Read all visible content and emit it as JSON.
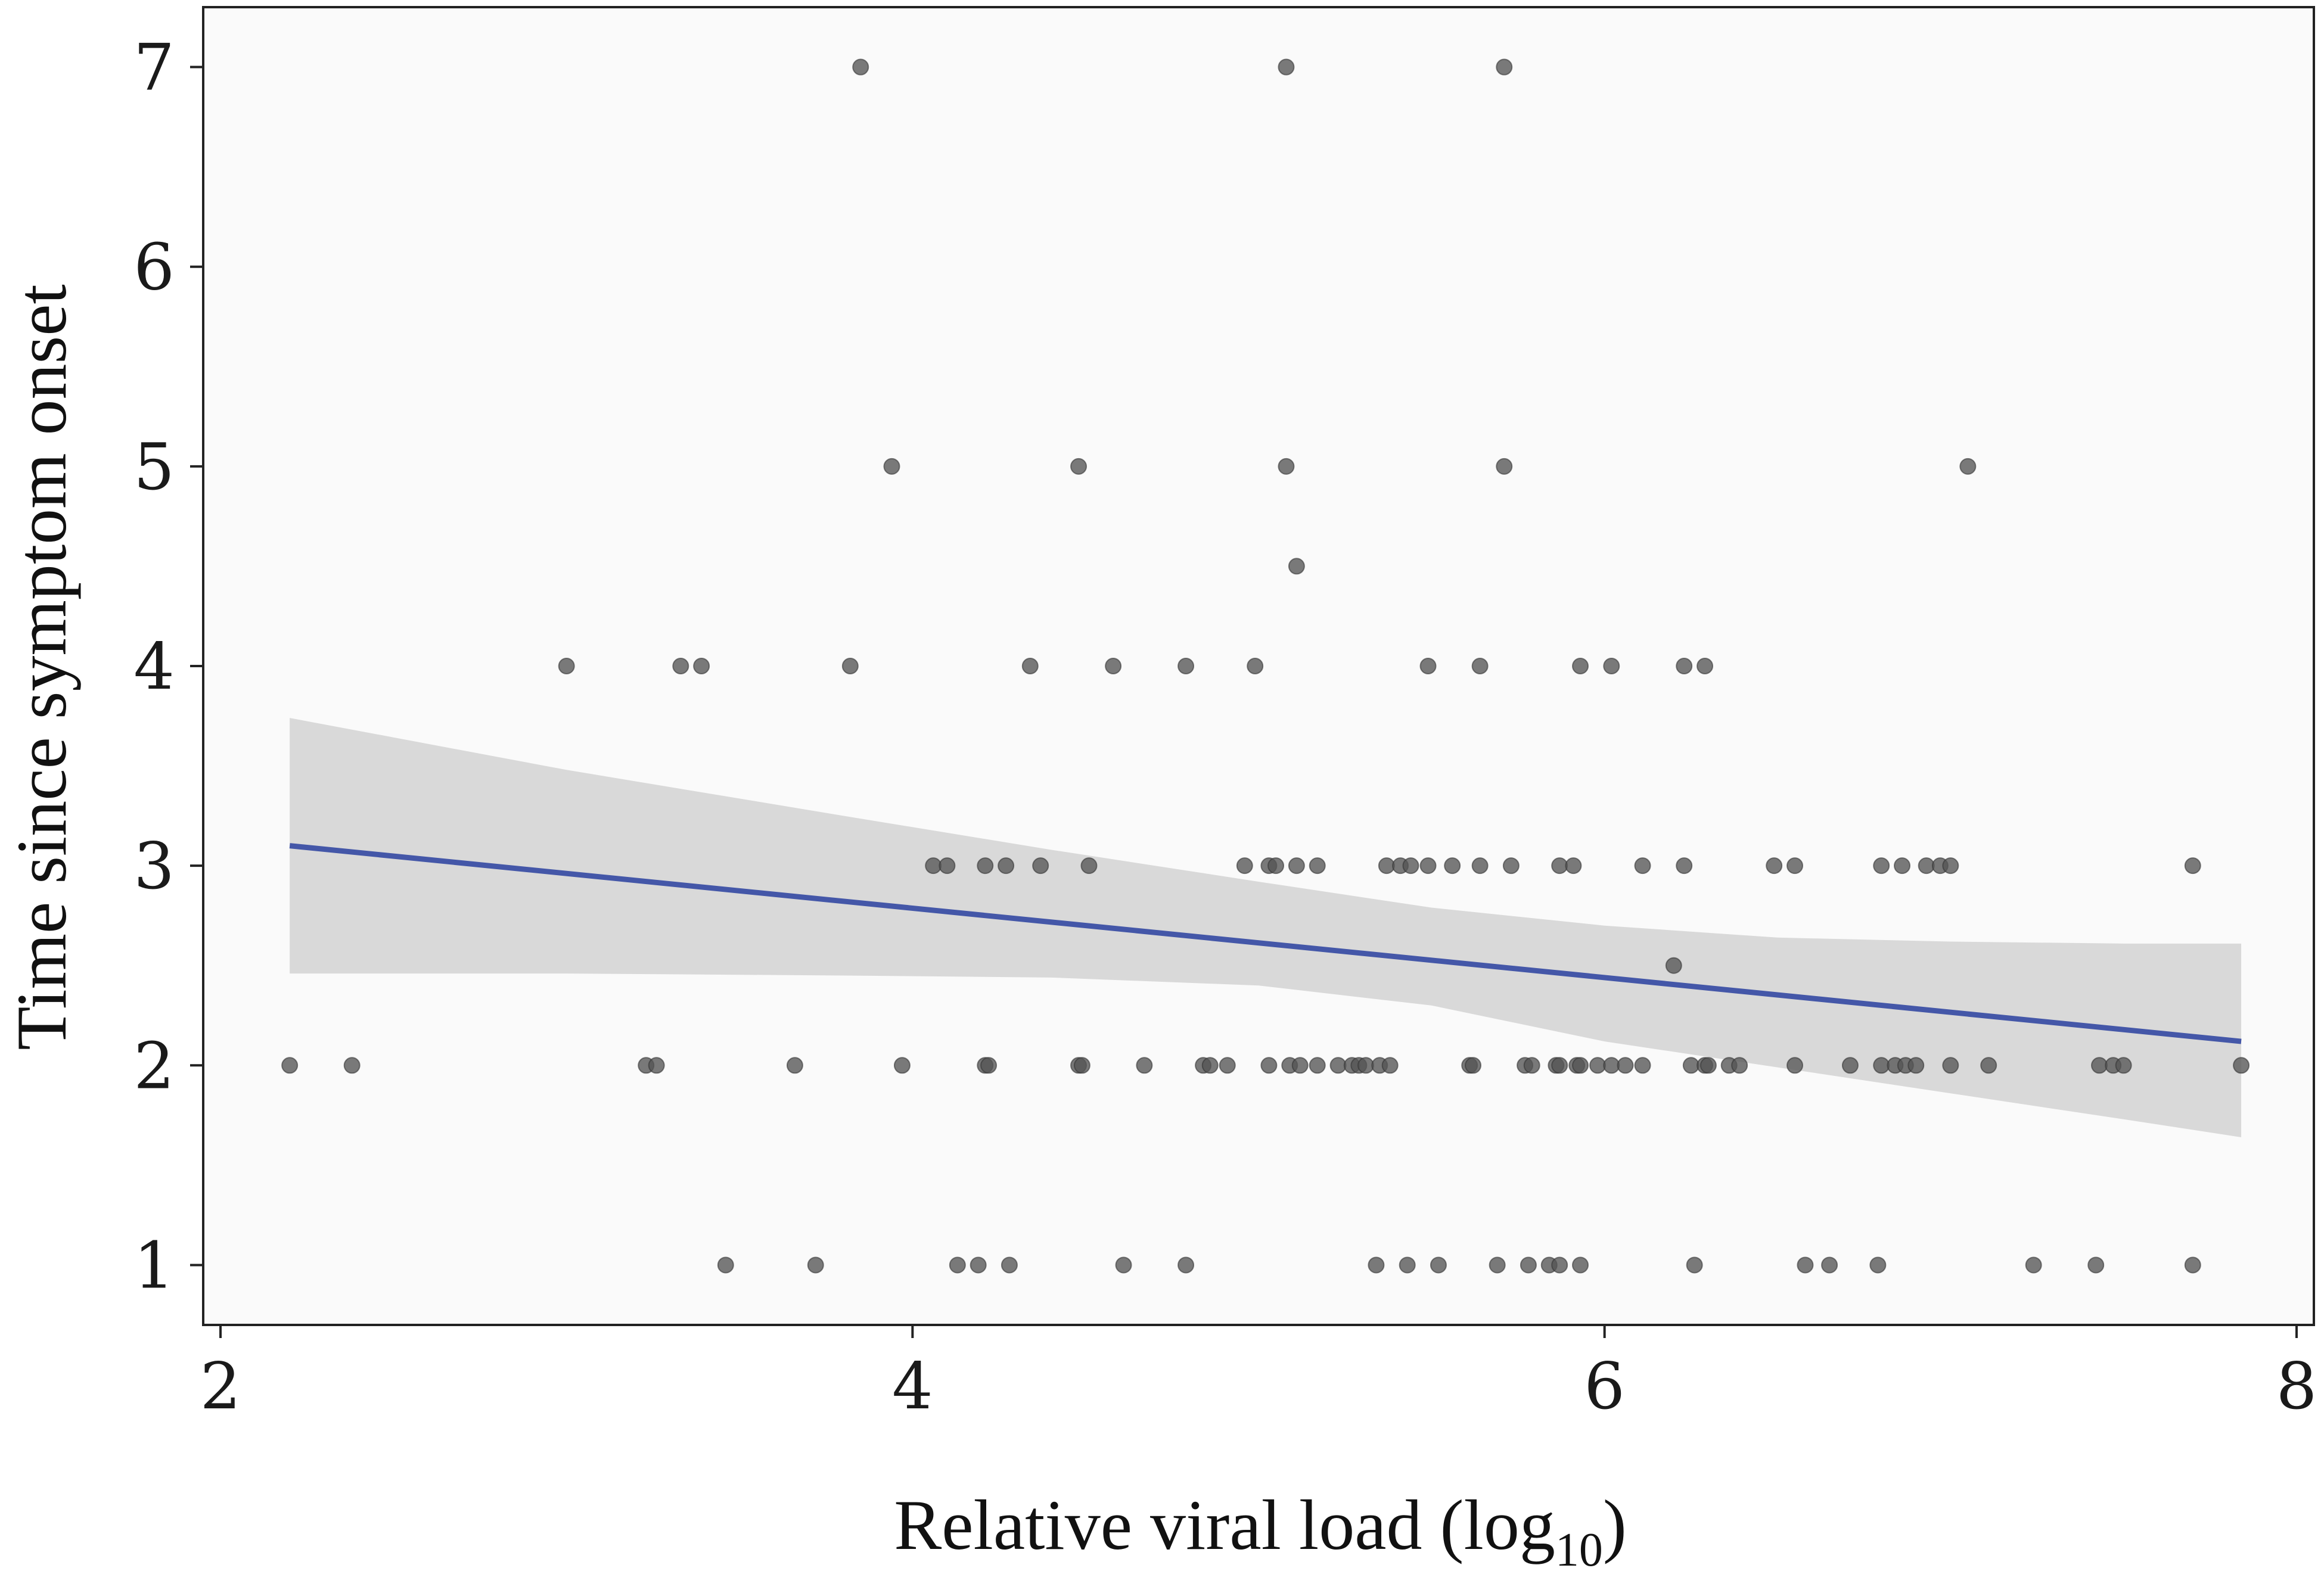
{
  "chart_data": {
    "type": "scatter",
    "xlabel": "Relative viral load (log",
    "xlabel_subscript": "10",
    "xlabel_close": ")",
    "ylabel": "Time since symptom onset",
    "xlim": [
      1.95,
      8.05
    ],
    "ylim": [
      0.7,
      7.3
    ],
    "x_ticks": [
      2,
      4,
      6,
      8
    ],
    "y_ticks": [
      1,
      2,
      3,
      4,
      5,
      6,
      7
    ],
    "grid": false,
    "legend": "none",
    "colors": {
      "panel": "#fafafa",
      "point": "#555555",
      "line": "#4457a8",
      "ribbon": "#d9d9d9",
      "frame": "#222222"
    },
    "points": [
      [
        3.85,
        7
      ],
      [
        5.08,
        7
      ],
      [
        5.71,
        7
      ],
      [
        3.94,
        5
      ],
      [
        4.48,
        5
      ],
      [
        5.08,
        5
      ],
      [
        5.71,
        5
      ],
      [
        7.05,
        5
      ],
      [
        5.11,
        4.5
      ],
      [
        3.0,
        4
      ],
      [
        3.33,
        4
      ],
      [
        3.39,
        4
      ],
      [
        3.82,
        4
      ],
      [
        4.34,
        4
      ],
      [
        4.58,
        4
      ],
      [
        4.79,
        4
      ],
      [
        4.99,
        4
      ],
      [
        5.49,
        4
      ],
      [
        5.64,
        4
      ],
      [
        5.93,
        4
      ],
      [
        6.02,
        4
      ],
      [
        6.23,
        4
      ],
      [
        6.29,
        4
      ],
      [
        4.06,
        3
      ],
      [
        4.1,
        3
      ],
      [
        4.21,
        3
      ],
      [
        4.27,
        3
      ],
      [
        4.37,
        3
      ],
      [
        4.51,
        3
      ],
      [
        4.96,
        3
      ],
      [
        5.03,
        3
      ],
      [
        5.05,
        3
      ],
      [
        5.11,
        3
      ],
      [
        5.17,
        3
      ],
      [
        5.37,
        3
      ],
      [
        5.41,
        3
      ],
      [
        5.44,
        3
      ],
      [
        5.49,
        3
      ],
      [
        5.56,
        3
      ],
      [
        5.64,
        3
      ],
      [
        5.73,
        3
      ],
      [
        5.87,
        3
      ],
      [
        5.91,
        3
      ],
      [
        6.11,
        3
      ],
      [
        6.23,
        3
      ],
      [
        6.49,
        3
      ],
      [
        6.55,
        3
      ],
      [
        6.8,
        3
      ],
      [
        6.86,
        3
      ],
      [
        6.93,
        3
      ],
      [
        6.97,
        3
      ],
      [
        7.0,
        3
      ],
      [
        7.7,
        3
      ],
      [
        6.2,
        2.5
      ],
      [
        2.2,
        2
      ],
      [
        2.38,
        2
      ],
      [
        3.23,
        2
      ],
      [
        3.26,
        2
      ],
      [
        3.66,
        2
      ],
      [
        3.97,
        2
      ],
      [
        4.21,
        2
      ],
      [
        4.22,
        2
      ],
      [
        4.48,
        2
      ],
      [
        4.49,
        2
      ],
      [
        4.67,
        2
      ],
      [
        4.84,
        2
      ],
      [
        4.86,
        2
      ],
      [
        4.91,
        2
      ],
      [
        5.03,
        2
      ],
      [
        5.09,
        2
      ],
      [
        5.12,
        2
      ],
      [
        5.17,
        2
      ],
      [
        5.23,
        2
      ],
      [
        5.27,
        2
      ],
      [
        5.29,
        2
      ],
      [
        5.31,
        2
      ],
      [
        5.35,
        2
      ],
      [
        5.38,
        2
      ],
      [
        5.61,
        2
      ],
      [
        5.62,
        2
      ],
      [
        5.77,
        2
      ],
      [
        5.79,
        2
      ],
      [
        5.86,
        2
      ],
      [
        5.87,
        2
      ],
      [
        5.92,
        2
      ],
      [
        5.93,
        2
      ],
      [
        5.98,
        2
      ],
      [
        6.02,
        2
      ],
      [
        6.06,
        2
      ],
      [
        6.11,
        2
      ],
      [
        6.25,
        2
      ],
      [
        6.29,
        2
      ],
      [
        6.3,
        2
      ],
      [
        6.36,
        2
      ],
      [
        6.39,
        2
      ],
      [
        6.55,
        2
      ],
      [
        6.71,
        2
      ],
      [
        6.8,
        2
      ],
      [
        6.84,
        2
      ],
      [
        6.87,
        2
      ],
      [
        6.9,
        2
      ],
      [
        7.0,
        2
      ],
      [
        7.11,
        2
      ],
      [
        7.43,
        2
      ],
      [
        7.47,
        2
      ],
      [
        7.5,
        2
      ],
      [
        7.84,
        2
      ],
      [
        3.46,
        1
      ],
      [
        3.72,
        1
      ],
      [
        4.13,
        1
      ],
      [
        4.19,
        1
      ],
      [
        4.28,
        1
      ],
      [
        4.61,
        1
      ],
      [
        4.79,
        1
      ],
      [
        5.34,
        1
      ],
      [
        5.43,
        1
      ],
      [
        5.52,
        1
      ],
      [
        5.69,
        1
      ],
      [
        5.78,
        1
      ],
      [
        5.84,
        1
      ],
      [
        5.87,
        1
      ],
      [
        5.93,
        1
      ],
      [
        6.26,
        1
      ],
      [
        6.58,
        1
      ],
      [
        6.65,
        1
      ],
      [
        6.79,
        1
      ],
      [
        7.24,
        1
      ],
      [
        7.42,
        1
      ],
      [
        7.7,
        1
      ]
    ],
    "fit_line": [
      [
        2.2,
        3.1
      ],
      [
        7.84,
        2.12
      ]
    ],
    "ribbon": {
      "x": [
        2.2,
        3.0,
        3.8,
        4.4,
        5.0,
        5.5,
        6.0,
        6.5,
        7.0,
        7.5,
        7.84
      ],
      "upper": [
        3.74,
        3.48,
        3.25,
        3.08,
        2.92,
        2.79,
        2.7,
        2.64,
        2.62,
        2.61,
        2.61
      ],
      "lower": [
        2.46,
        2.46,
        2.45,
        2.44,
        2.4,
        2.3,
        2.12,
        1.99,
        1.86,
        1.73,
        1.64
      ]
    }
  }
}
